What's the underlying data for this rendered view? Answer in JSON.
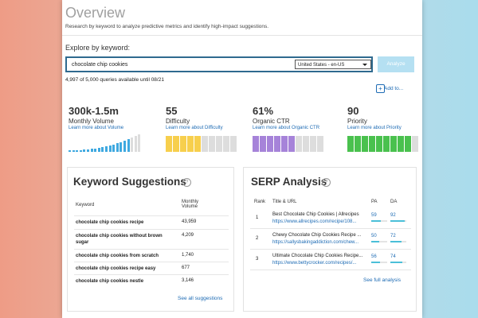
{
  "header": {
    "title": "Overview",
    "subtitle": "Research by keyword to analyze predictive metrics and identify high-impact suggestions."
  },
  "search": {
    "label": "Explore by keyword:",
    "query": "chocolate chip cookies",
    "locale": "United States - en-US",
    "button": "Analyze",
    "quota": "4,997 of 5,000 queries available until 08/21",
    "add_to": "Add to..."
  },
  "metrics": [
    {
      "value": "300k-1.5m",
      "label": "Monthly Volume",
      "link": "Learn more about Volume"
    },
    {
      "value": "55",
      "label": "Difficulty",
      "link": "Learn more about Difficulty"
    },
    {
      "value": "61%",
      "label": "Organic CTR",
      "link": "Learn more about Organic CTR"
    },
    {
      "value": "90",
      "label": "Priority",
      "link": "Learn more about Priority"
    }
  ],
  "keyword_suggestions": {
    "title": "Keyword Suggestions",
    "columns": [
      "Keyword",
      "Monthly Volume"
    ],
    "rows": [
      [
        "chocolate chip cookies recipe",
        "43,959"
      ],
      [
        "chocolate chip cookies without brown sugar",
        "4,209"
      ],
      [
        "chocolate chip cookies from scratch",
        "1,740"
      ],
      [
        "chocolate chip cookies recipe easy",
        "677"
      ],
      [
        "chocolate chip cookies nestle",
        "3,146"
      ]
    ],
    "link": "See all suggestions"
  },
  "serp_analysis": {
    "title": "SERP Analysis",
    "columns": [
      "Rank",
      "Title & URL",
      "PA",
      "DA"
    ],
    "rows": [
      {
        "rank": 1,
        "title": "Best Chocolate Chip Cookies | Allrecipes",
        "url": "https://www.allrecipes.com/recipe/108...",
        "pa": 59,
        "da": 92
      },
      {
        "rank": 2,
        "title": "Chewy Chocolate Chip Cookies Recipe ...",
        "url": "https://sallysbakingaddiction.com/chew...",
        "pa": 50,
        "da": 72
      },
      {
        "rank": 3,
        "title": "Ultimate Chocolate Chip Cookies Recipe...",
        "url": "https://www.bettycrocker.com/recipes/...",
        "pa": 56,
        "da": 74
      }
    ],
    "link": "See full analysis"
  }
}
